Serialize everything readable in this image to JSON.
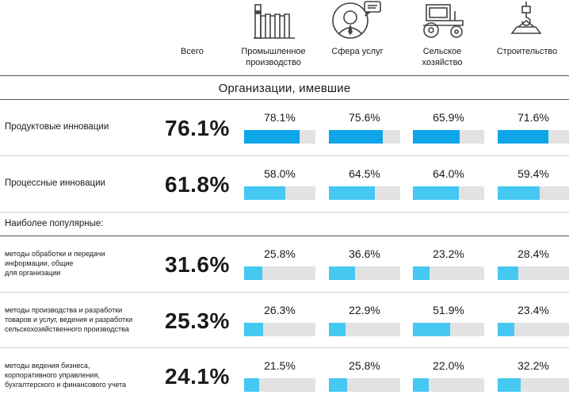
{
  "headers": {
    "total": "Всего",
    "sectors": [
      {
        "label_line1": "Промышленное",
        "label_line2": "производство",
        "icon": "factory-icon"
      },
      {
        "label_line1": "Сфера услуг",
        "label_line2": "",
        "icon": "service-person-icon"
      },
      {
        "label_line1": "Сельское",
        "label_line2": "хозяйство",
        "icon": "tractor-icon"
      },
      {
        "label_line1": "Строительство",
        "label_line2": "",
        "icon": "crane-hook-icon"
      }
    ]
  },
  "section_title": "Организации, имевшие",
  "popular_heading": "Наиболее популярные:",
  "colors": {
    "primary": "#0ea5e9",
    "secondary": "#45c8f2",
    "track": "#e2e2e2"
  },
  "chart_data": {
    "type": "bar",
    "title": "Организации, имевшие",
    "categories": [
      "Промышленное производство",
      "Сфера услуг",
      "Сельское хозяйство",
      "Строительство"
    ],
    "ylim": [
      0,
      100
    ],
    "unit": "%",
    "rows": [
      {
        "label_lines": [
          "Продуктовые инновации"
        ],
        "total": "76.1%",
        "total_value": 76.1,
        "values": [
          78.1,
          75.6,
          65.9,
          71.6
        ],
        "labels": [
          "78.1%",
          "75.6%",
          "65.9%",
          "71.6%"
        ],
        "style": "primary"
      },
      {
        "label_lines": [
          "Процессные инновации"
        ],
        "total": "61.8%",
        "total_value": 61.8,
        "values": [
          58.0,
          64.5,
          64.0,
          59.4
        ],
        "labels": [
          "58.0%",
          "64.5%",
          "64.0%",
          "59.4%"
        ],
        "style": "secondary"
      },
      {
        "label_lines": [
          "методы обработки и передачи",
          "информации, общие",
          "для организации"
        ],
        "total": "31.6%",
        "total_value": 31.6,
        "values": [
          25.8,
          36.6,
          23.2,
          28.4
        ],
        "labels": [
          "25.8%",
          "36.6%",
          "23.2%",
          "28.4%"
        ],
        "style": "secondary"
      },
      {
        "label_lines": [
          "методы производства и разработки",
          "товаров и услуг, ведения и разработки",
          "сельскохозяйственного производства"
        ],
        "total": "25.3%",
        "total_value": 25.3,
        "values": [
          26.3,
          22.9,
          51.9,
          23.4
        ],
        "labels": [
          "26.3%",
          "22.9%",
          "51.9%",
          "23.4%"
        ],
        "style": "secondary"
      },
      {
        "label_lines": [
          "методы ведения бизнеса,",
          "корпоративного управления,",
          "бухгалтерского и финансового учета"
        ],
        "total": "24.1%",
        "total_value": 24.1,
        "values": [
          21.5,
          25.8,
          22.0,
          32.2
        ],
        "labels": [
          "21.5%",
          "25.8%",
          "22.0%",
          "32.2%"
        ],
        "style": "secondary"
      }
    ]
  }
}
